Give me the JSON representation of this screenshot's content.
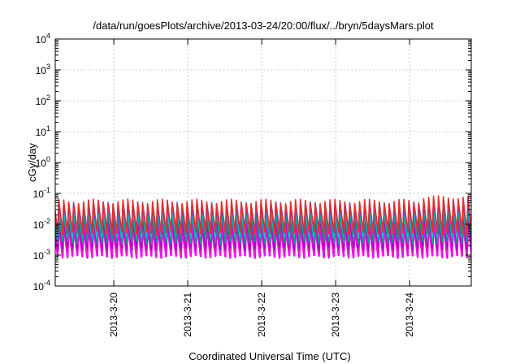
{
  "chart_data": {
    "type": "line",
    "title": "/data/run/goesPlots/archive/2013-03-24/20:00/flux/../bryn/5daysMars.plot",
    "xlabel": "Coordinated Universal Time (UTC)",
    "ylabel": "cGy/day",
    "y_scale": "log",
    "ylim": [
      0.0001,
      10000
    ],
    "y_ticks": [
      {
        "base": "10",
        "exp": "-4"
      },
      {
        "base": "10",
        "exp": "-3"
      },
      {
        "base": "10",
        "exp": "-2"
      },
      {
        "base": "10",
        "exp": "-1"
      },
      {
        "base": "10",
        "exp": "0"
      },
      {
        "base": "10",
        "exp": "1"
      },
      {
        "base": "10",
        "exp": "2"
      },
      {
        "base": "10",
        "exp": "3"
      },
      {
        "base": "10",
        "exp": "4"
      }
    ],
    "x_ticks": [
      "2013-3-20",
      "2013-3-21",
      "2013-3-22",
      "2013-3-23",
      "2013-3-24"
    ],
    "xlim": [
      "2013-03-19 05:00",
      "2013-03-24 20:00"
    ],
    "grid": true,
    "legend": "none",
    "cycle_hours": 1.6,
    "series": [
      {
        "color": "#ff00ff",
        "min": 0.0009,
        "max": 0.009
      },
      {
        "color": "#cc3399",
        "min": 0.0012,
        "max": 0.013
      },
      {
        "color": "#aa00cc",
        "min": 0.0016,
        "max": 0.016
      },
      {
        "color": "#00a08a",
        "min": 0.0025,
        "max": 0.02
      },
      {
        "color": "#00c8c8",
        "min": 0.004,
        "max": 0.028
      },
      {
        "color": "#2277ff",
        "min": 0.006,
        "max": 0.045
      },
      {
        "color": "#6633cc",
        "min": 0.0055,
        "max": 0.04
      },
      {
        "color": "#e03030",
        "min": 0.005,
        "max": 0.055
      }
    ]
  }
}
